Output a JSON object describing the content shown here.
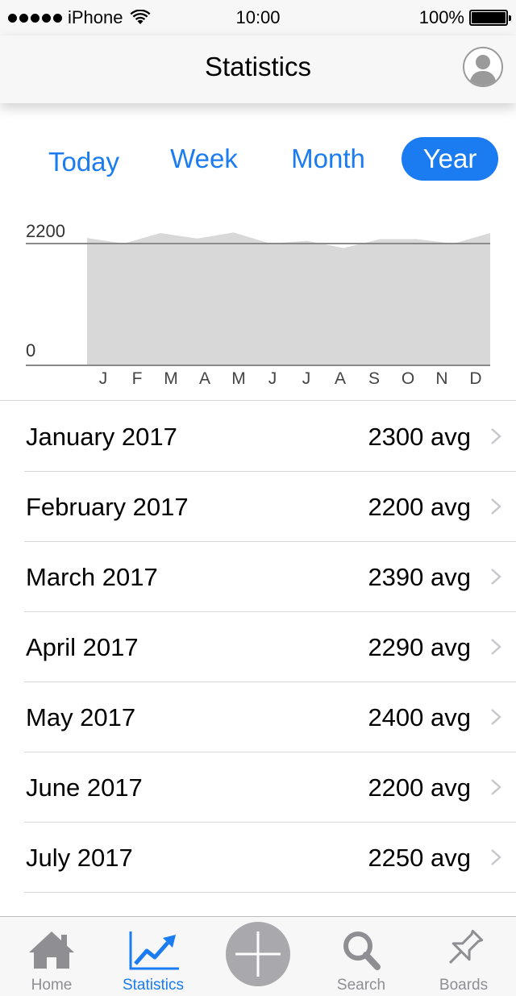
{
  "status_bar": {
    "carrier": "iPhone",
    "time": "10:00",
    "battery": "100%"
  },
  "nav": {
    "title": "Statistics",
    "profile_icon": "person-circle-icon"
  },
  "segments": {
    "today": "Today",
    "week": "Week",
    "month": "Month",
    "year": "Year",
    "selected": "Year"
  },
  "chart_data": {
    "type": "area",
    "x": [
      "J",
      "F",
      "M",
      "A",
      "M",
      "J",
      "J",
      "A",
      "S",
      "O",
      "N",
      "D"
    ],
    "series": [
      {
        "values": [
          2300,
          2200,
          2390,
          2290,
          2400,
          2200,
          2250,
          2120,
          2280,
          2280,
          2200,
          2390
        ]
      }
    ],
    "y_tick_labels": [
      "0",
      "2200"
    ],
    "reference_line": 2200,
    "ylim": [
      0,
      2600
    ],
    "grid": false,
    "colors": {
      "fill": "#d8d8d8",
      "line": "#8a8a8a"
    }
  },
  "list": {
    "rows": [
      {
        "label": "January 2017",
        "value": "2300 avg"
      },
      {
        "label": "February 2017",
        "value": "2200 avg"
      },
      {
        "label": "March 2017",
        "value": "2390 avg"
      },
      {
        "label": "April 2017",
        "value": "2290 avg"
      },
      {
        "label": "May 2017",
        "value": "2400 avg"
      },
      {
        "label": "June 2017",
        "value": "2200 avg"
      },
      {
        "label": "July 2017",
        "value": "2250 avg"
      }
    ]
  },
  "tab_bar": {
    "home": "Home",
    "statistics": "Statistics",
    "search": "Search",
    "boards": "Boards",
    "active": "Statistics",
    "accent": "#1a7cf0",
    "inactive": "#8e8e93"
  }
}
